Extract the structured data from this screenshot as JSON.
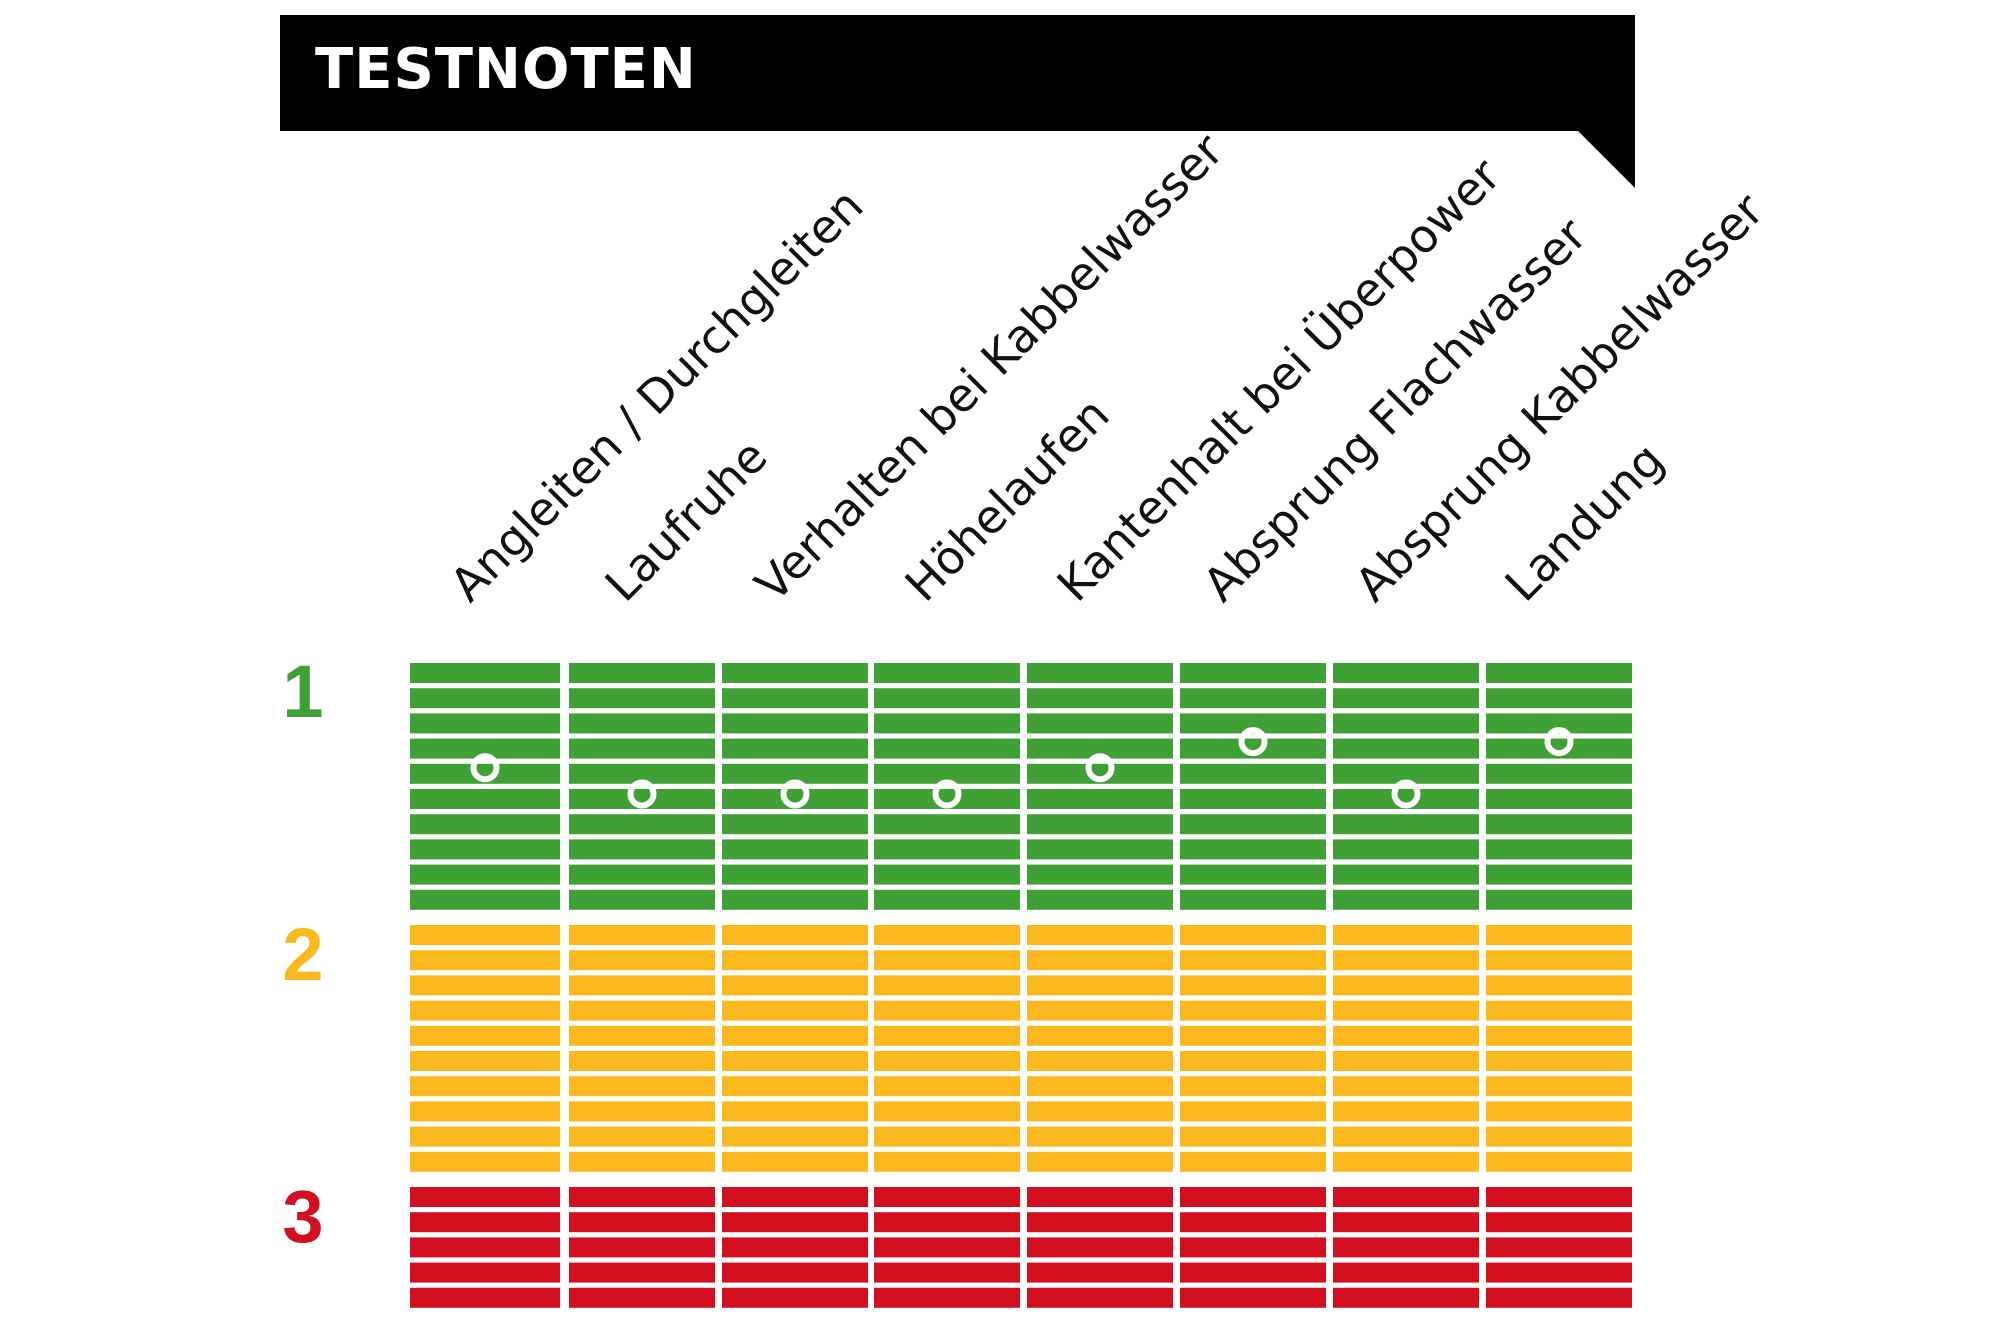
{
  "title": "TESTNOTEN",
  "colors": {
    "banner": "#000000",
    "grade_1": "#3fa135",
    "grade_2": "#fbb81f",
    "grade_3": "#d10f1f",
    "marker": "#ffffff"
  },
  "chart_data": {
    "type": "scatter",
    "title": "TESTNOTEN",
    "categories": [
      "Angleiten / Durchgleiten",
      "Laufruhe",
      "Verhalten bei Kabbelwasser",
      "Höhelaufen",
      "Kantenhalt bei Überpower",
      "Absprung Flachwasser",
      "Absprung Kabbelwasser",
      "Landung"
    ],
    "grade_bands": [
      {
        "label": "1",
        "color": "#3fa135",
        "rows": 10
      },
      {
        "label": "2",
        "color": "#fbb81f",
        "rows": 10
      },
      {
        "label": "3",
        "color": "#d10f1f",
        "rows": 5
      }
    ],
    "values": [
      1.4,
      1.5,
      1.5,
      1.5,
      1.4,
      1.3,
      1.5,
      1.3
    ],
    "y_range": [
      1.0,
      3.5
    ],
    "y_reversed": true
  }
}
